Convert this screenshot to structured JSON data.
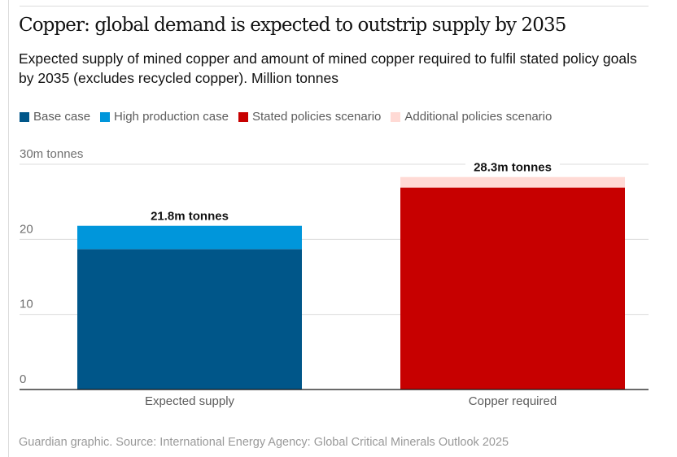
{
  "title": "Copper: global demand is expected to outstrip supply by 2035",
  "subtitle": "Expected supply of mined copper and amount of mined copper required to fulfil stated policy goals by 2035 (excludes recycled copper). Million tonnes",
  "source": "Guardian graphic. Source: International Energy Agency: Global Critical Minerals Outlook 2025",
  "legend": [
    {
      "label": "Base case",
      "color": "#005689"
    },
    {
      "label": "High production case",
      "color": "#0096db"
    },
    {
      "label": "Stated policies scenario",
      "color": "#c70000"
    },
    {
      "label": "Additional policies scenario",
      "color": "#ffdad5"
    }
  ],
  "chart_data": {
    "type": "bar",
    "stacked": true,
    "title": "Copper: global demand is expected to outstrip supply by 2035",
    "xlabel": "",
    "ylabel": "Million tonnes",
    "ylim": [
      0,
      30
    ],
    "yticks": [
      0,
      10,
      20,
      30
    ],
    "ytick_labels": [
      "0",
      "10",
      "20",
      "30m tonnes"
    ],
    "grid": true,
    "legend_position": "top-left",
    "categories": [
      "Expected supply",
      "Copper required"
    ],
    "series": [
      {
        "name": "Base case",
        "color": "#005689",
        "values": [
          18.7,
          0
        ]
      },
      {
        "name": "High production case",
        "color": "#0096db",
        "values": [
          3.1,
          0
        ]
      },
      {
        "name": "Stated policies scenario",
        "color": "#c70000",
        "values": [
          0,
          26.9
        ]
      },
      {
        "name": "Additional policies scenario",
        "color": "#ffdad5",
        "values": [
          0,
          1.4
        ]
      }
    ],
    "totals": [
      21.8,
      28.3
    ],
    "total_labels": [
      "21.8m tonnes",
      "28.3m tonnes"
    ]
  }
}
